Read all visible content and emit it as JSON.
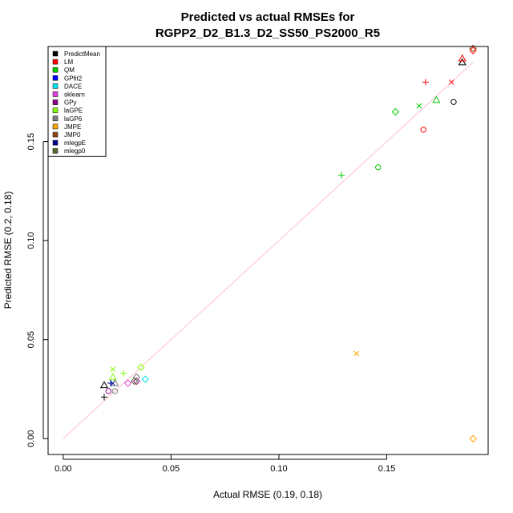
{
  "chart_data": {
    "type": "scatter",
    "title_lines": [
      "Predicted vs actual RMSEs for",
      "RGPP2_D2_B1.3_D2_SS50_PS2000_R5"
    ],
    "xlabel": "Actual RMSE (0.19, 0.18)",
    "ylabel": "Predicted RMSE (0.2, 0.18)",
    "xlim": [
      -0.007,
      0.197
    ],
    "ylim": [
      -0.008,
      0.198
    ],
    "xticks": [
      0.0,
      0.05,
      0.1,
      0.15
    ],
    "yticks": [
      0.0,
      0.05,
      0.1,
      0.15
    ],
    "xtick_labels": [
      "0.00",
      "0.05",
      "0.10",
      "0.15"
    ],
    "ytick_labels": [
      "0.00",
      "0.05",
      "0.10",
      "0.15"
    ],
    "reference_line": {
      "from": [
        0,
        0
      ],
      "to": [
        0.19,
        0.19
      ],
      "color": "#ffc0cb"
    },
    "legend_position": "top-left",
    "series": [
      {
        "name": "PredictMean",
        "color": "#000000",
        "points": [
          {
            "x": 0.181,
            "y": 0.17,
            "marker": "circle"
          },
          {
            "x": 0.185,
            "y": 0.19,
            "marker": "triangle"
          },
          {
            "x": 0.019,
            "y": 0.021,
            "marker": "plus"
          },
          {
            "x": 0.019,
            "y": 0.027,
            "marker": "triangle"
          }
        ]
      },
      {
        "name": "LM",
        "color": "#ff0000",
        "points": [
          {
            "x": 0.185,
            "y": 0.192,
            "marker": "triangle"
          },
          {
            "x": 0.168,
            "y": 0.18,
            "marker": "plus"
          },
          {
            "x": 0.18,
            "y": 0.18,
            "marker": "cross"
          },
          {
            "x": 0.167,
            "y": 0.156,
            "marker": "circle"
          },
          {
            "x": 0.19,
            "y": 0.196,
            "marker": "diamond"
          }
        ]
      },
      {
        "name": "QM",
        "color": "#00cd00",
        "points": [
          {
            "x": 0.173,
            "y": 0.171,
            "marker": "triangle"
          },
          {
            "x": 0.165,
            "y": 0.168,
            "marker": "cross"
          },
          {
            "x": 0.154,
            "y": 0.165,
            "marker": "diamond"
          },
          {
            "x": 0.129,
            "y": 0.133,
            "marker": "plus"
          },
          {
            "x": 0.146,
            "y": 0.137,
            "marker": "circle"
          }
        ]
      },
      {
        "name": "GPfit2",
        "color": "#0000ff",
        "points": [
          {
            "x": 0.023,
            "y": 0.028,
            "marker": "cross"
          }
        ]
      },
      {
        "name": "DACE",
        "color": "#00e5ee",
        "points": [
          {
            "x": 0.038,
            "y": 0.03,
            "marker": "diamond"
          }
        ]
      },
      {
        "name": "sklearn",
        "color": "#e040e0",
        "points": [
          {
            "x": 0.03,
            "y": 0.028,
            "marker": "diamond"
          }
        ]
      },
      {
        "name": "GPy",
        "color": "#8b008b",
        "points": [
          {
            "x": 0.021,
            "y": 0.024,
            "marker": "circle"
          },
          {
            "x": 0.034,
            "y": 0.029,
            "marker": "diamond"
          }
        ]
      },
      {
        "name": "laGPE",
        "color": "#7fff00",
        "points": [
          {
            "x": 0.023,
            "y": 0.035,
            "marker": "cross"
          },
          {
            "x": 0.028,
            "y": 0.033,
            "marker": "plus"
          },
          {
            "x": 0.036,
            "y": 0.036,
            "marker": "diamond"
          },
          {
            "x": 0.023,
            "y": 0.031,
            "marker": "triangle"
          }
        ]
      },
      {
        "name": "laGP6",
        "color": "#7f7f7f",
        "points": [
          {
            "x": 0.024,
            "y": 0.024,
            "marker": "circle"
          },
          {
            "x": 0.034,
            "y": 0.031,
            "marker": "diamond"
          },
          {
            "x": 0.024,
            "y": 0.028,
            "marker": "triangle"
          }
        ]
      },
      {
        "name": "JMPE",
        "color": "#ffa500",
        "points": [
          {
            "x": 0.136,
            "y": 0.043,
            "marker": "cross"
          },
          {
            "x": 0.19,
            "y": 0.0,
            "marker": "diamond"
          }
        ]
      },
      {
        "name": "JMP0",
        "color": "#8b4513",
        "points": [
          {
            "x": 0.19,
            "y": 0.197,
            "marker": "diamond"
          }
        ]
      },
      {
        "name": "mlegpE",
        "color": "#00008b",
        "points": [
          {
            "x": 0.022,
            "y": 0.028,
            "marker": "plus"
          }
        ]
      },
      {
        "name": "mlegp0",
        "color": "#556b2f",
        "points": [
          {
            "x": 0.033,
            "y": 0.029,
            "marker": "diamond"
          }
        ]
      }
    ]
  }
}
